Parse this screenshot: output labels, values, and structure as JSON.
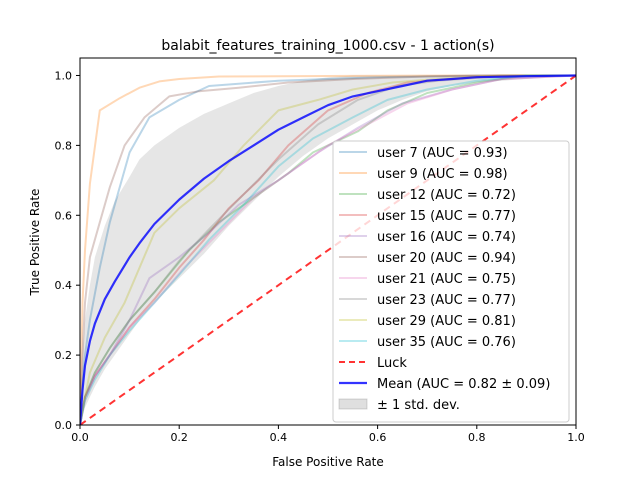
{
  "chart_data": {
    "type": "line",
    "title": "balabit_features_training_1000.csv - 1 action(s)",
    "xlabel": "False Positive Rate",
    "ylabel": "True Positive Rate",
    "xlim": [
      0.0,
      1.0
    ],
    "ylim": [
      0.0,
      1.05
    ],
    "xticks": [
      "0.0",
      "0.2",
      "0.4",
      "0.6",
      "0.8",
      "1.0"
    ],
    "yticks": [
      "0.0",
      "0.2",
      "0.4",
      "0.6",
      "0.8",
      "1.0"
    ],
    "grid": false,
    "legend_position": "lower-right",
    "series": [
      {
        "name": "user 7 (AUC = 0.93)",
        "color": "#1f77b4",
        "alpha": 0.3,
        "style": "solid",
        "x": [
          0,
          0.005,
          0.01,
          0.02,
          0.04,
          0.06,
          0.08,
          0.1,
          0.14,
          0.2,
          0.26,
          0.4,
          0.6,
          0.8,
          1.0
        ],
        "y": [
          0,
          0.12,
          0.2,
          0.3,
          0.45,
          0.58,
          0.68,
          0.78,
          0.88,
          0.93,
          0.97,
          0.985,
          0.995,
          1.0,
          1.0
        ]
      },
      {
        "name": "user 9 (AUC = 0.98)",
        "color": "#ff7f0e",
        "alpha": 0.3,
        "style": "solid",
        "x": [
          0,
          0.005,
          0.01,
          0.02,
          0.04,
          0.08,
          0.12,
          0.16,
          0.2,
          0.28,
          0.4,
          0.6,
          0.8,
          1.0
        ],
        "y": [
          0,
          0.35,
          0.5,
          0.69,
          0.9,
          0.935,
          0.965,
          0.983,
          0.99,
          0.997,
          0.998,
          0.999,
          1.0,
          1.0
        ]
      },
      {
        "name": "user 12 (AUC = 0.72)",
        "color": "#2ca02c",
        "alpha": 0.3,
        "style": "solid",
        "x": [
          0,
          0.01,
          0.03,
          0.06,
          0.1,
          0.15,
          0.22,
          0.28,
          0.35,
          0.42,
          0.47,
          0.56,
          0.62,
          0.7,
          0.8,
          0.9,
          1.0
        ],
        "y": [
          0,
          0.08,
          0.15,
          0.22,
          0.3,
          0.38,
          0.5,
          0.58,
          0.65,
          0.72,
          0.78,
          0.84,
          0.9,
          0.95,
          0.98,
          1.0,
          1.0
        ]
      },
      {
        "name": "user 15 (AUC = 0.77)",
        "color": "#d62728",
        "alpha": 0.3,
        "style": "solid",
        "x": [
          0,
          0.01,
          0.03,
          0.06,
          0.1,
          0.15,
          0.2,
          0.25,
          0.3,
          0.36,
          0.42,
          0.5,
          0.58,
          0.66,
          0.75,
          0.85,
          1.0
        ],
        "y": [
          0,
          0.08,
          0.14,
          0.2,
          0.28,
          0.36,
          0.45,
          0.53,
          0.62,
          0.7,
          0.8,
          0.9,
          0.95,
          0.98,
          0.99,
          1.0,
          1.0
        ]
      },
      {
        "name": "user 16 (AUC = 0.74)",
        "color": "#9467bd",
        "alpha": 0.3,
        "style": "solid",
        "x": [
          0,
          0.01,
          0.03,
          0.06,
          0.1,
          0.14,
          0.2,
          0.26,
          0.32,
          0.4,
          0.48,
          0.56,
          0.65,
          0.75,
          0.85,
          1.0
        ],
        "y": [
          0,
          0.08,
          0.14,
          0.2,
          0.3,
          0.42,
          0.48,
          0.55,
          0.63,
          0.7,
          0.78,
          0.85,
          0.92,
          0.96,
          0.99,
          1.0
        ]
      },
      {
        "name": "user 20 (AUC = 0.94)",
        "color": "#8c564b",
        "alpha": 0.3,
        "style": "solid",
        "x": [
          0,
          0.005,
          0.01,
          0.02,
          0.04,
          0.06,
          0.09,
          0.13,
          0.18,
          0.24,
          0.32,
          0.42,
          0.55,
          0.7,
          0.85,
          1.0
        ],
        "y": [
          0,
          0.2,
          0.35,
          0.48,
          0.58,
          0.68,
          0.8,
          0.88,
          0.94,
          0.955,
          0.965,
          0.98,
          0.99,
          0.997,
          1.0,
          1.0
        ]
      },
      {
        "name": "user 21 (AUC = 0.75)",
        "color": "#e377c2",
        "alpha": 0.3,
        "style": "solid",
        "x": [
          0,
          0.01,
          0.03,
          0.06,
          0.1,
          0.15,
          0.21,
          0.28,
          0.35,
          0.42,
          0.5,
          0.58,
          0.66,
          0.75,
          0.85,
          1.0
        ],
        "y": [
          0,
          0.07,
          0.14,
          0.2,
          0.28,
          0.35,
          0.45,
          0.55,
          0.65,
          0.72,
          0.8,
          0.86,
          0.92,
          0.96,
          0.99,
          1.0
        ]
      },
      {
        "name": "user 23 (AUC = 0.77)",
        "color": "#7f7f7f",
        "alpha": 0.3,
        "style": "solid",
        "x": [
          0,
          0.01,
          0.03,
          0.06,
          0.1,
          0.15,
          0.2,
          0.26,
          0.33,
          0.4,
          0.48,
          0.56,
          0.64,
          0.72,
          0.82,
          0.9,
          1.0
        ],
        "y": [
          0,
          0.08,
          0.15,
          0.22,
          0.3,
          0.38,
          0.47,
          0.56,
          0.66,
          0.76,
          0.86,
          0.93,
          0.97,
          0.985,
          0.995,
          1.0,
          1.0
        ]
      },
      {
        "name": "user 29 (AUC = 0.81)",
        "color": "#bcbd22",
        "alpha": 0.3,
        "style": "solid",
        "x": [
          0,
          0.01,
          0.02,
          0.05,
          0.09,
          0.15,
          0.2,
          0.27,
          0.33,
          0.4,
          0.48,
          0.55,
          0.63,
          0.72,
          0.85,
          1.0
        ],
        "y": [
          0,
          0.08,
          0.15,
          0.25,
          0.35,
          0.55,
          0.62,
          0.7,
          0.8,
          0.9,
          0.93,
          0.96,
          0.98,
          0.99,
          1.0,
          1.0
        ]
      },
      {
        "name": "user 35 (AUC = 0.76)",
        "color": "#17becf",
        "alpha": 0.3,
        "style": "solid",
        "x": [
          0,
          0.01,
          0.03,
          0.06,
          0.1,
          0.15,
          0.2,
          0.26,
          0.33,
          0.4,
          0.47,
          0.55,
          0.62,
          0.7,
          0.8,
          0.9,
          1.0
        ],
        "y": [
          0,
          0.07,
          0.13,
          0.2,
          0.27,
          0.35,
          0.43,
          0.53,
          0.63,
          0.74,
          0.82,
          0.88,
          0.93,
          0.96,
          0.985,
          1.0,
          1.0
        ]
      },
      {
        "name": "Luck",
        "color": "#ff0000",
        "alpha": 0.8,
        "style": "dashed",
        "x": [
          0,
          1
        ],
        "y": [
          0,
          1
        ]
      },
      {
        "name": "Mean (AUC = 0.82 ± 0.09)",
        "color": "#0000ff",
        "alpha": 0.8,
        "style": "solid",
        "x": [
          0,
          0.005,
          0.01,
          0.02,
          0.03,
          0.05,
          0.07,
          0.1,
          0.12,
          0.15,
          0.2,
          0.25,
          0.3,
          0.35,
          0.4,
          0.45,
          0.5,
          0.55,
          0.6,
          0.65,
          0.7,
          0.75,
          0.8,
          0.9,
          1.0
        ],
        "y": [
          0,
          0.1,
          0.17,
          0.24,
          0.29,
          0.36,
          0.41,
          0.48,
          0.52,
          0.575,
          0.645,
          0.705,
          0.755,
          0.8,
          0.845,
          0.88,
          0.915,
          0.94,
          0.955,
          0.97,
          0.985,
          0.99,
          0.995,
          0.998,
          1.0
        ]
      }
    ],
    "band": {
      "name": "± 1 std. dev.",
      "color": "#808080",
      "alpha": 0.2,
      "x": [
        0,
        0.005,
        0.01,
        0.02,
        0.03,
        0.05,
        0.07,
        0.1,
        0.12,
        0.15,
        0.2,
        0.25,
        0.3,
        0.35,
        0.4,
        0.45,
        0.5,
        0.55,
        0.6,
        0.65,
        0.7,
        0.75,
        0.8,
        0.9,
        1.0
      ],
      "upper": [
        0,
        0.2,
        0.3,
        0.4,
        0.48,
        0.57,
        0.64,
        0.71,
        0.76,
        0.8,
        0.85,
        0.89,
        0.92,
        0.95,
        0.97,
        0.985,
        0.995,
        1.0,
        1.0,
        1.0,
        1.0,
        1.0,
        1.0,
        1.0,
        1.0
      ],
      "lower": [
        0,
        0.03,
        0.05,
        0.08,
        0.11,
        0.16,
        0.2,
        0.26,
        0.3,
        0.35,
        0.42,
        0.49,
        0.57,
        0.64,
        0.71,
        0.77,
        0.82,
        0.86,
        0.9,
        0.93,
        0.955,
        0.97,
        0.98,
        0.99,
        1.0
      ]
    }
  }
}
